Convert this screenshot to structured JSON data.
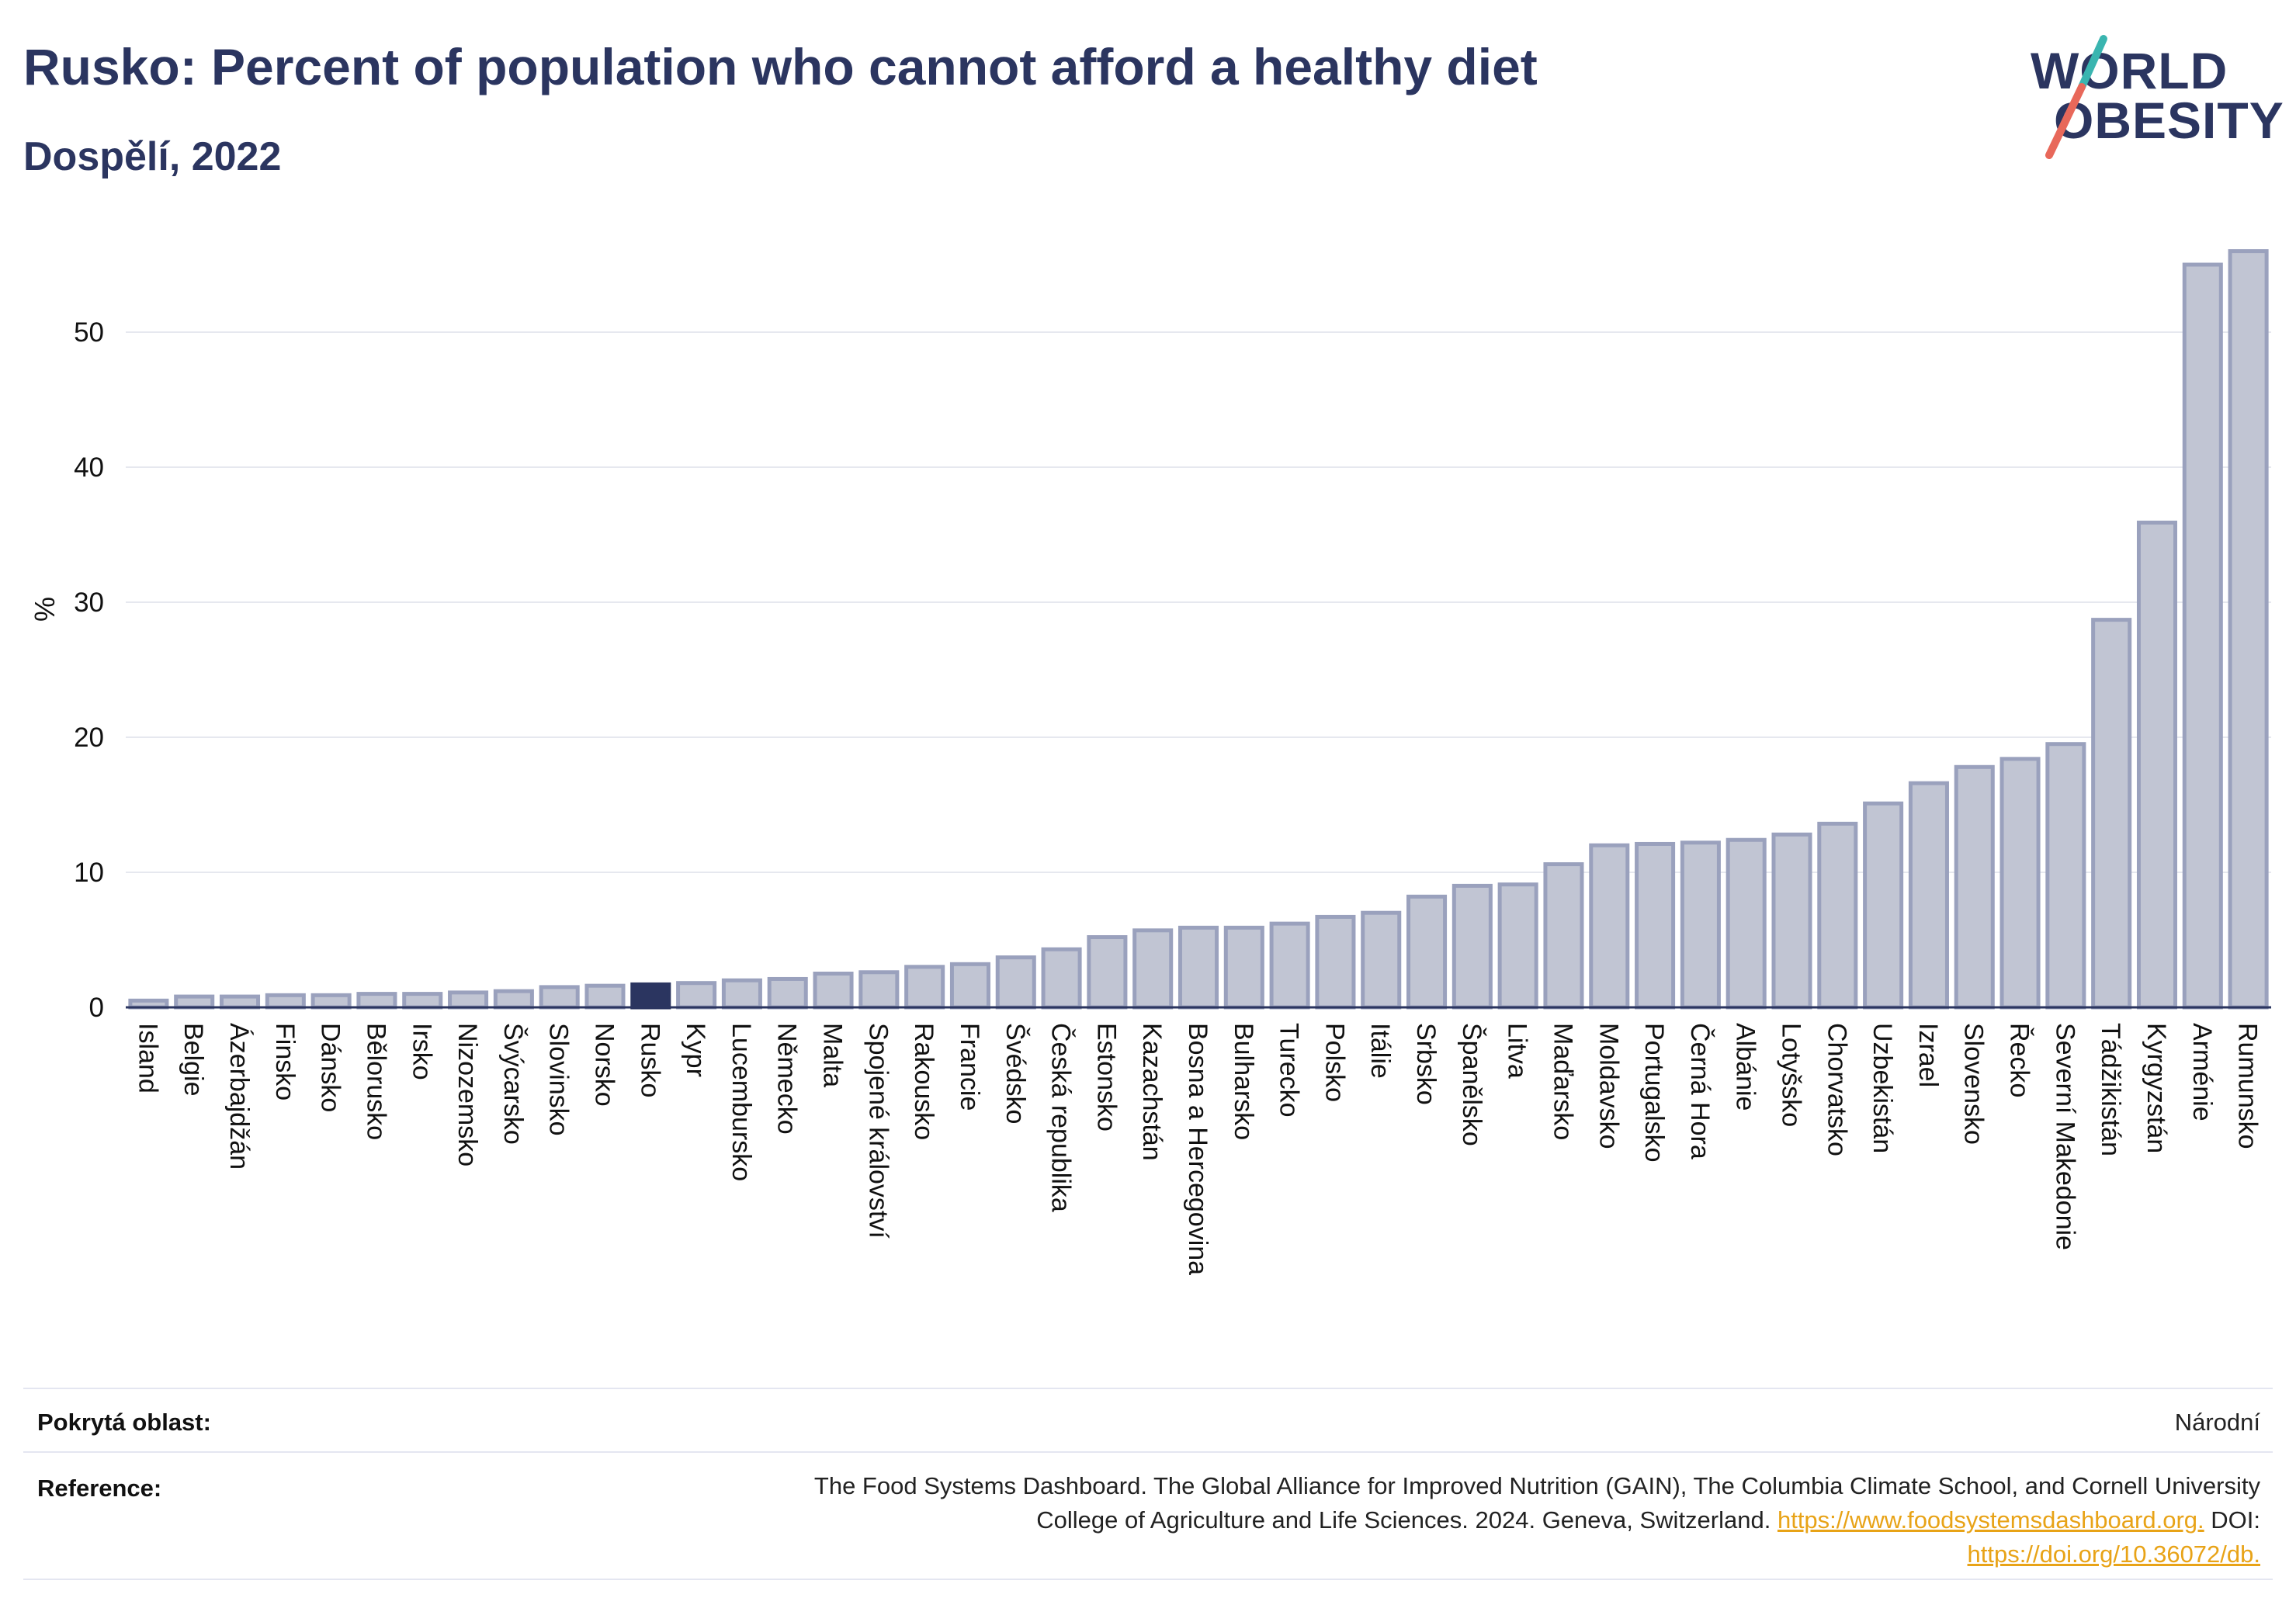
{
  "header": {
    "title": "Rusko: Percent of population who cannot afford a healthy diet",
    "subtitle": "Dospělí, 2022"
  },
  "logo": {
    "line1": "WORLD",
    "line2": "OBESITY"
  },
  "colors": {
    "bar_fill": "#c1c5d3",
    "bar_stroke": "#9aa1bd",
    "highlight": "#2b3560",
    "text": "#2b3560",
    "link": "#e8a317",
    "logo_teal": "#3ab5b0",
    "logo_red": "#e8685a"
  },
  "chart_data": {
    "type": "bar",
    "title": "Rusko: Percent of population who cannot afford a healthy diet",
    "subtitle": "Dospělí, 2022",
    "ylabel": "%",
    "xlabel": "",
    "ylim": [
      0,
      57
    ],
    "yticks": [
      0,
      10,
      20,
      30,
      40,
      50
    ],
    "grid": true,
    "highlight": "Rusko",
    "categories": [
      "Island",
      "Belgie",
      "Ázerbajdžán",
      "Finsko",
      "Dánsko",
      "Bělorusko",
      "Irsko",
      "Nizozemsko",
      "Švýcarsko",
      "Slovinsko",
      "Norsko",
      "Rusko",
      "Kypr",
      "Lucembursko",
      "Německo",
      "Malta",
      "Spojené království",
      "Rakousko",
      "Francie",
      "Švédsko",
      "Česká republika",
      "Estonsko",
      "Kazachstán",
      "Bosna a Hercegovina",
      "Bulharsko",
      "Turecko",
      "Polsko",
      "Itálie",
      "Srbsko",
      "Španělsko",
      "Litva",
      "Maďarsko",
      "Moldavsko",
      "Portugalsko",
      "Černá Hora",
      "Albánie",
      "Lotyšsko",
      "Chorvatsko",
      "Uzbekistán",
      "Izrael",
      "Slovensko",
      "Řecko",
      "Severní Makedonie",
      "Tádžikistán",
      "Kyrgyzstán",
      "Arménie",
      "Rumunsko"
    ],
    "values": [
      0.5,
      0.8,
      0.8,
      0.9,
      0.9,
      1.0,
      1.0,
      1.1,
      1.2,
      1.5,
      1.6,
      1.7,
      1.8,
      2.0,
      2.1,
      2.5,
      2.6,
      3.0,
      3.2,
      3.7,
      4.3,
      5.2,
      5.7,
      5.9,
      5.9,
      6.2,
      6.7,
      7.0,
      8.2,
      9.0,
      9.1,
      10.6,
      12.0,
      12.1,
      12.2,
      12.4,
      12.8,
      13.6,
      15.1,
      16.6,
      17.8,
      18.4,
      19.5,
      28.7,
      35.9,
      55.0,
      56.0
    ]
  },
  "footer": {
    "coverage_label": "Pokrytá oblast:",
    "coverage_value": "Národní",
    "reference_label": "Reference:",
    "reference_line1": "The Food Systems Dashboard. The Global Alliance for Improved Nutrition (GAIN), The Columbia Climate School, and Cornell University",
    "reference_line2_text": "College of Agriculture and Life Sciences. 2024. Geneva, Switzerland.",
    "reference_link1": "https://www.foodsystemsdashboard.org.",
    "reference_doi_label": "DOI:",
    "reference_link2": "https://doi.org/10.36072/db."
  }
}
